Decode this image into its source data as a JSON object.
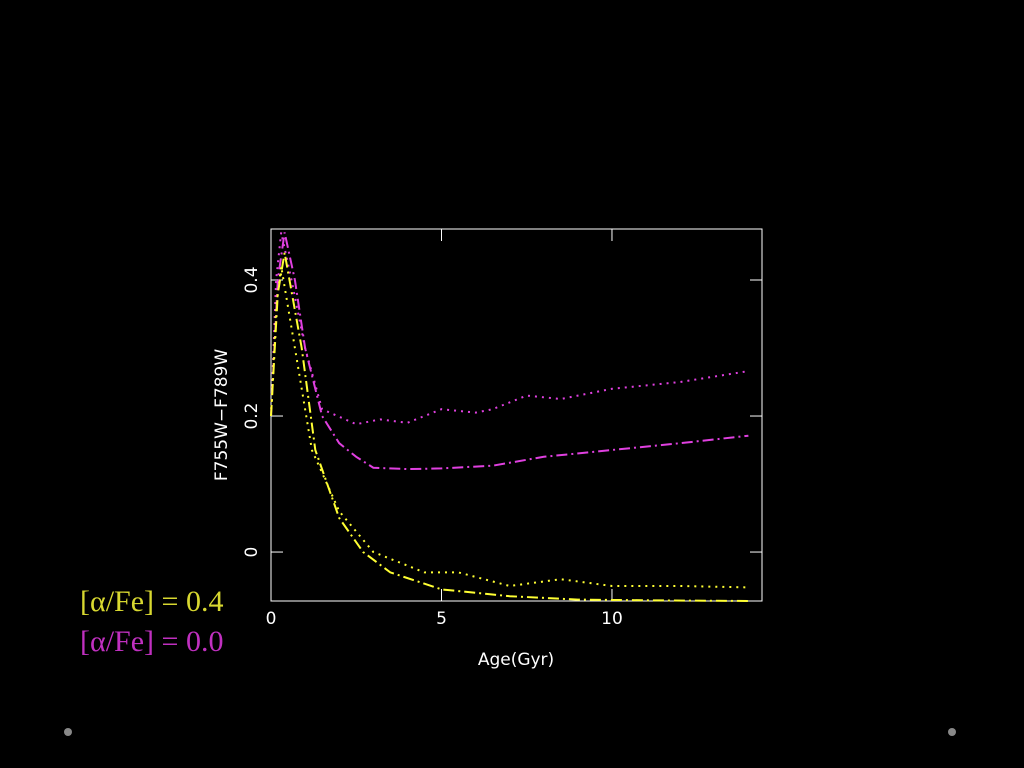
{
  "chart_data": {
    "type": "line",
    "xlabel": "Age(Gyr)",
    "ylabel": "F755W−F789W",
    "xlim": [
      0,
      14.4
    ],
    "xticks": [
      0,
      5,
      10
    ],
    "ylim": [
      -0.072,
      0.475
    ],
    "yticks": [
      0,
      0.2,
      0.4
    ],
    "series": [
      {
        "color": "#e040e0",
        "style": "dotted",
        "x": [
          0,
          0.15,
          0.3,
          0.6,
          1.0,
          1.5,
          2.5,
          3.2,
          4.0,
          5.0,
          6.0,
          6.5,
          7.5,
          8.5,
          10,
          12,
          14
        ],
        "values": [
          0.2,
          0.4,
          0.47,
          0.4,
          0.3,
          0.21,
          0.188,
          0.195,
          0.19,
          0.21,
          0.205,
          0.21,
          0.23,
          0.225,
          0.24,
          0.25,
          0.266
        ]
      },
      {
        "color": "#e040e0",
        "style": "dashdot",
        "x": [
          0,
          0.2,
          0.4,
          0.7,
          1.0,
          1.5,
          2.0,
          2.5,
          3.0,
          4.0,
          5.0,
          6.5,
          8.0,
          10,
          12,
          14
        ],
        "values": [
          0.2,
          0.4,
          0.47,
          0.4,
          0.3,
          0.2,
          0.16,
          0.14,
          0.124,
          0.122,
          0.123,
          0.127,
          0.14,
          0.15,
          0.16,
          0.171
        ]
      },
      {
        "color": "#ffff33",
        "style": "dotted",
        "x": [
          0,
          0.15,
          0.3,
          0.7,
          1.2,
          2.0,
          3.0,
          4.5,
          5.5,
          7.0,
          8.5,
          10,
          12,
          14
        ],
        "values": [
          0.2,
          0.36,
          0.42,
          0.3,
          0.15,
          0.06,
          0.0,
          -0.03,
          -0.03,
          -0.05,
          -0.04,
          -0.05,
          -0.05,
          -0.052
        ]
      },
      {
        "color": "#ffff33",
        "style": "dashdot",
        "x": [
          0,
          0.2,
          0.4,
          0.9,
          1.3,
          2.0,
          2.7,
          3.5,
          5.0,
          7.0,
          9.0,
          11,
          14
        ],
        "values": [
          0.2,
          0.38,
          0.44,
          0.3,
          0.15,
          0.05,
          0.0,
          -0.03,
          -0.055,
          -0.065,
          -0.07,
          -0.071,
          -0.072
        ]
      }
    ],
    "legend": [
      {
        "label": "[α/Fe] = 0.4",
        "color": "#d8d830"
      },
      {
        "label": "[α/Fe] = 0.0",
        "color": "#c030c0"
      }
    ]
  }
}
